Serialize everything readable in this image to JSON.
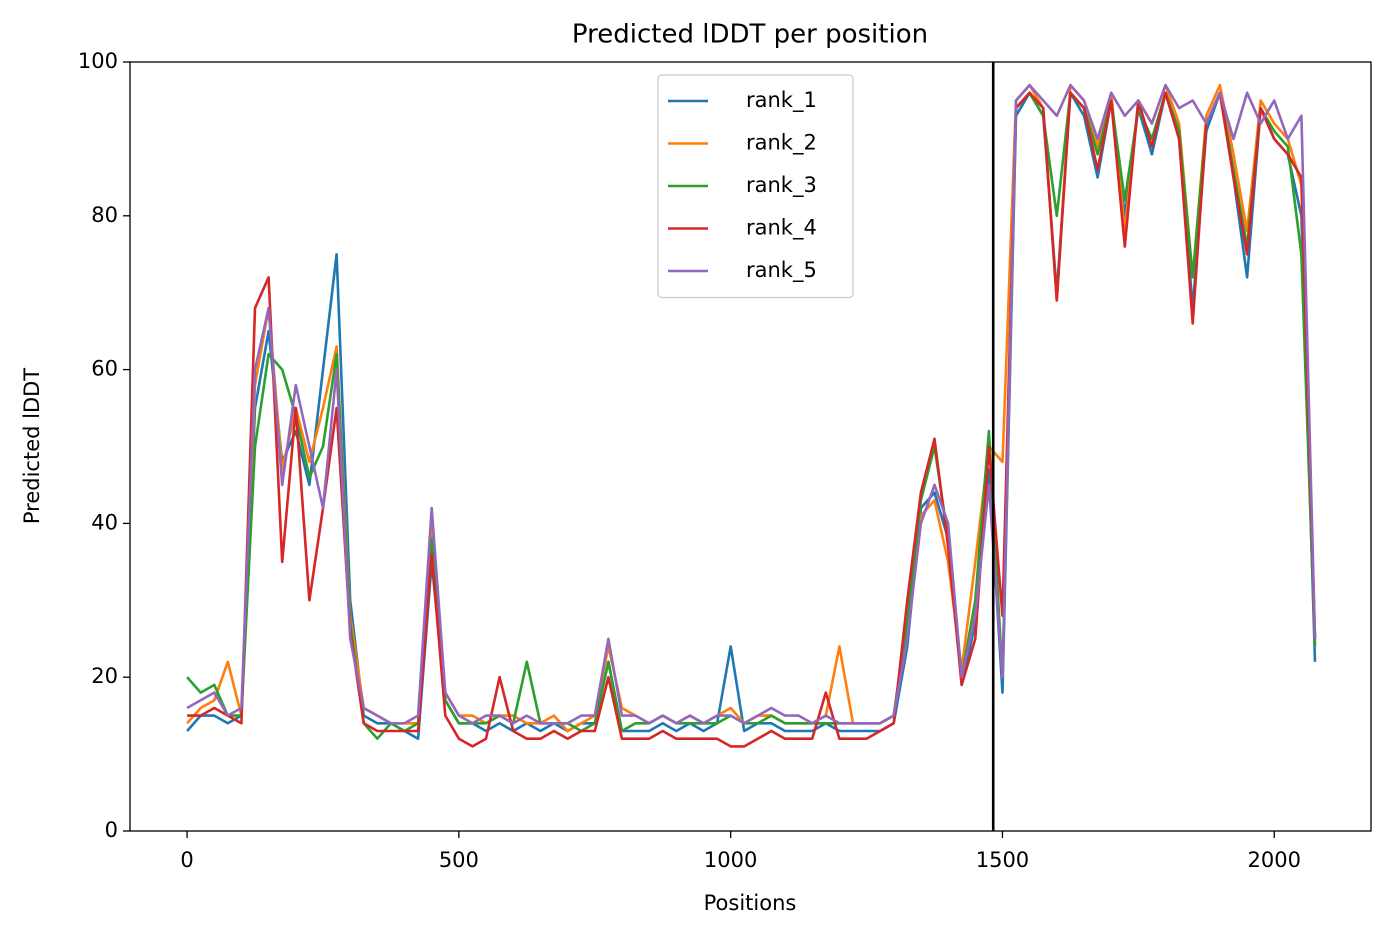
{
  "chart_data": {
    "type": "line",
    "title": "Predicted lDDT per position",
    "xlabel": "Positions",
    "ylabel": "Predicted lDDT",
    "x": [
      0,
      25,
      50,
      75,
      100,
      125,
      150,
      175,
      200,
      225,
      250,
      275,
      300,
      325,
      350,
      375,
      400,
      425,
      450,
      475,
      500,
      525,
      550,
      575,
      600,
      625,
      650,
      675,
      700,
      725,
      750,
      775,
      800,
      825,
      850,
      875,
      900,
      925,
      950,
      975,
      1000,
      1025,
      1050,
      1075,
      1100,
      1125,
      1150,
      1175,
      1200,
      1225,
      1250,
      1275,
      1300,
      1325,
      1350,
      1375,
      1400,
      1425,
      1450,
      1475,
      1500,
      1525,
      1550,
      1575,
      1600,
      1625,
      1650,
      1675,
      1700,
      1725,
      1750,
      1775,
      1800,
      1825,
      1850,
      1875,
      1900,
      1925,
      1950,
      1975,
      2000,
      2025,
      2050,
      2075
    ],
    "series": [
      {
        "name": "rank_1",
        "color": "#1f77b4",
        "values": [
          13,
          15,
          15,
          14,
          15,
          55,
          65,
          48,
          52,
          45,
          60,
          75,
          30,
          15,
          14,
          14,
          13,
          12,
          35,
          17,
          14,
          14,
          13,
          14,
          13,
          14,
          13,
          14,
          13,
          14,
          14,
          22,
          13,
          13,
          13,
          14,
          13,
          14,
          13,
          14,
          24,
          13,
          14,
          14,
          13,
          13,
          13,
          14,
          13,
          13,
          13,
          13,
          14,
          24,
          42,
          44,
          38,
          19,
          27,
          47,
          18,
          93,
          96,
          93,
          70,
          96,
          93,
          85,
          95,
          80,
          94,
          88,
          96,
          90,
          68,
          91,
          96,
          85,
          72,
          94,
          90,
          88,
          80,
          22
        ]
      },
      {
        "name": "rank_2",
        "color": "#ff7f0e",
        "values": [
          14,
          16,
          17,
          22,
          15,
          58,
          68,
          47,
          55,
          48,
          55,
          63,
          28,
          16,
          15,
          14,
          14,
          14,
          40,
          18,
          15,
          15,
          14,
          15,
          15,
          14,
          14,
          15,
          13,
          14,
          15,
          24,
          16,
          15,
          14,
          15,
          14,
          15,
          14,
          15,
          16,
          14,
          15,
          15,
          14,
          14,
          14,
          15,
          24,
          14,
          14,
          14,
          15,
          28,
          41,
          43,
          35,
          21,
          35,
          50,
          48,
          95,
          97,
          94,
          69,
          97,
          95,
          89,
          96,
          78,
          95,
          92,
          97,
          92,
          72,
          93,
          97,
          88,
          78,
          95,
          92,
          90,
          84,
          25
        ]
      },
      {
        "name": "rank_3",
        "color": "#2ca02c",
        "values": [
          20,
          18,
          19,
          15,
          15,
          50,
          62,
          60,
          54,
          46,
          50,
          62,
          27,
          14,
          12,
          14,
          13,
          14,
          38,
          17,
          14,
          14,
          14,
          15,
          14,
          22,
          14,
          14,
          14,
          13,
          14,
          22,
          13,
          14,
          14,
          15,
          14,
          14,
          14,
          14,
          15,
          14,
          14,
          15,
          14,
          14,
          14,
          14,
          14,
          14,
          14,
          14,
          15,
          27,
          43,
          50,
          38,
          20,
          30,
          52,
          20,
          94,
          96,
          93,
          80,
          96,
          94,
          88,
          95,
          82,
          94,
          90,
          96,
          91,
          72,
          92,
          96,
          86,
          76,
          94,
          91,
          89,
          75,
          24
        ]
      },
      {
        "name": "rank_4",
        "color": "#d62728",
        "values": [
          15,
          15,
          16,
          15,
          14,
          68,
          72,
          35,
          55,
          30,
          42,
          55,
          26,
          14,
          13,
          13,
          13,
          13,
          36,
          15,
          12,
          11,
          12,
          20,
          13,
          12,
          12,
          13,
          12,
          13,
          13,
          20,
          12,
          12,
          12,
          13,
          12,
          12,
          12,
          12,
          11,
          11,
          12,
          13,
          12,
          12,
          12,
          18,
          12,
          12,
          12,
          13,
          14,
          30,
          44,
          51,
          37,
          19,
          25,
          50,
          28,
          94,
          96,
          94,
          69,
          96,
          94,
          86,
          95,
          76,
          95,
          89,
          96,
          90,
          66,
          92,
          96,
          85,
          75,
          94,
          90,
          88,
          85,
          25
        ]
      },
      {
        "name": "rank_5",
        "color": "#9467bd",
        "values": [
          16,
          17,
          18,
          15,
          16,
          60,
          68,
          45,
          58,
          50,
          42,
          60,
          25,
          16,
          15,
          14,
          14,
          15,
          42,
          18,
          15,
          14,
          15,
          15,
          14,
          15,
          14,
          14,
          14,
          15,
          15,
          25,
          15,
          15,
          14,
          15,
          14,
          15,
          14,
          15,
          15,
          14,
          15,
          16,
          15,
          15,
          14,
          15,
          14,
          14,
          14,
          14,
          15,
          25,
          40,
          45,
          40,
          20,
          28,
          45,
          20,
          95,
          97,
          95,
          93,
          97,
          95,
          90,
          96,
          93,
          95,
          92,
          97,
          94,
          95,
          92,
          96,
          90,
          96,
          92,
          95,
          90,
          93,
          25
        ]
      }
    ],
    "vline_x": 1483,
    "vline_color": "#000000",
    "xlim": [
      -105,
      2178
    ],
    "ylim": [
      0,
      100
    ],
    "xticks": [
      0,
      500,
      1000,
      1500,
      2000
    ],
    "yticks": [
      0,
      20,
      40,
      60,
      80,
      100
    ],
    "grid": false,
    "legend": "upper center"
  }
}
